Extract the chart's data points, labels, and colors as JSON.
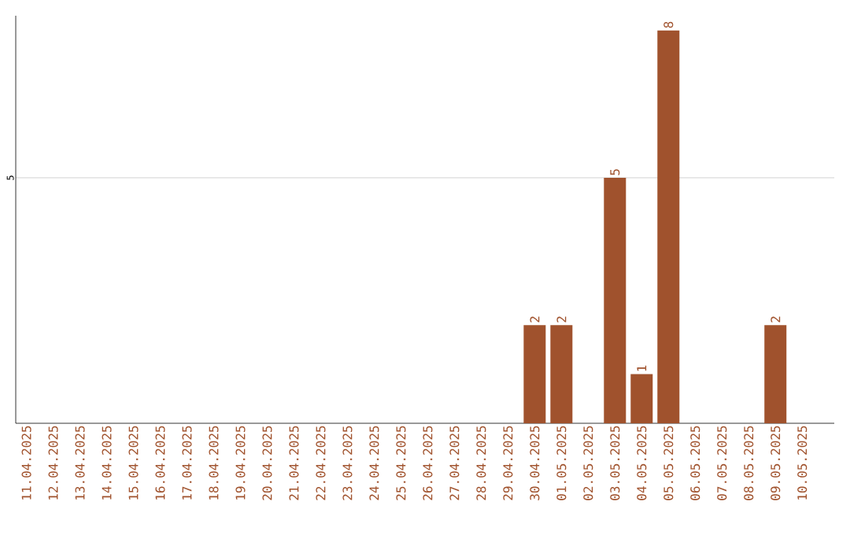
{
  "chart_data": {
    "type": "bar",
    "categories": [
      "11.04.2025",
      "12.04.2025",
      "13.04.2025",
      "14.04.2025",
      "15.04.2025",
      "16.04.2025",
      "17.04.2025",
      "18.04.2025",
      "19.04.2025",
      "20.04.2025",
      "21.04.2025",
      "22.04.2025",
      "23.04.2025",
      "24.04.2025",
      "25.04.2025",
      "26.04.2025",
      "27.04.2025",
      "28.04.2025",
      "29.04.2025",
      "30.04.2025",
      "01.05.2025",
      "02.05.2025",
      "03.05.2025",
      "04.05.2025",
      "05.05.2025",
      "06.05.2025",
      "07.05.2025",
      "08.05.2025",
      "09.05.2025",
      "10.05.2025"
    ],
    "values": [
      null,
      null,
      null,
      null,
      null,
      null,
      null,
      null,
      null,
      null,
      null,
      null,
      null,
      null,
      null,
      null,
      null,
      null,
      null,
      2,
      2,
      null,
      5,
      1,
      8,
      null,
      null,
      null,
      2,
      null
    ],
    "color": "#a0522d",
    "data_labels": true,
    "ylim": [
      0,
      8.3
    ],
    "yticks": [
      5
    ],
    "grid": "y"
  }
}
